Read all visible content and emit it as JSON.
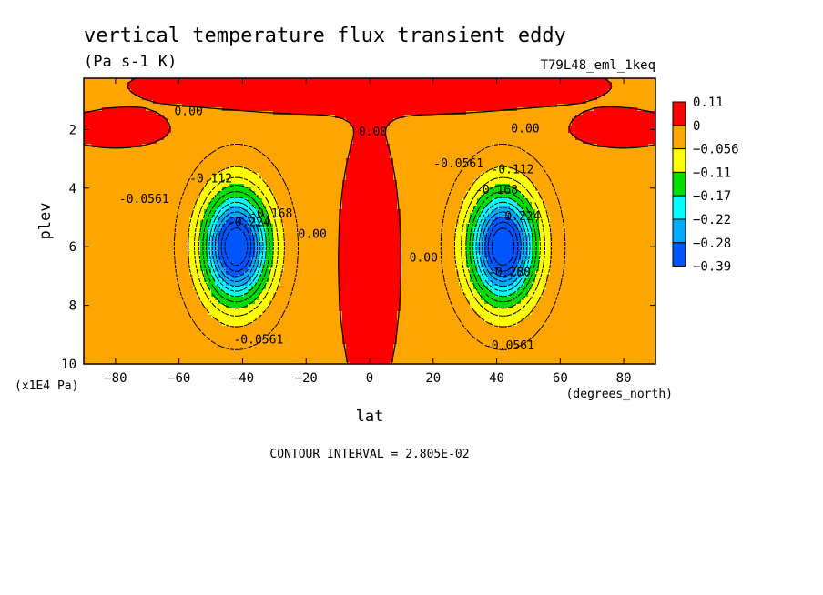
{
  "chart_data": {
    "type": "heatmap",
    "subtype": "filled-contour",
    "title": "vertical temperature flux transient eddy",
    "units": "(Pa s-1 K)",
    "dataset": "T79L48_eml_1keq",
    "xlabel": "lat",
    "xunits": "(degrees_north)",
    "ylabel": "plev",
    "yunits": "(x1E4 Pa)",
    "xlim": [
      -90,
      90
    ],
    "ylim": [
      10,
      0.25
    ],
    "xticks": [
      -80,
      -60,
      -40,
      -20,
      0,
      20,
      40,
      60,
      80
    ],
    "yticks": [
      2,
      4,
      6,
      8,
      10
    ],
    "contour_interval": "CONTOUR INTERVAL = 2.805E-02",
    "colorbar": {
      "labels": [
        "0.11",
        "0",
        "−0.056",
        "−0.11",
        "−0.17",
        "−0.22",
        "−0.28",
        "−0.39"
      ],
      "colors": [
        "#ff0000",
        "#ffa500",
        "#ffff00",
        "#00dd00",
        "#00ffff",
        "#00aaff",
        "#0055ff"
      ]
    },
    "contour_labels": [
      {
        "text": "0.00",
        "lat": -57,
        "plev": 1.5
      },
      {
        "text": "0.00",
        "lat": 1,
        "plev": 2.2
      },
      {
        "text": "0.00",
        "lat": 49,
        "plev": 2.1
      },
      {
        "text": "-0.0561",
        "lat": -71,
        "plev": 4.5
      },
      {
        "text": "-0.112",
        "lat": -50,
        "plev": 3.8
      },
      {
        "text": "-0.224",
        "lat": -38,
        "plev": 5.3
      },
      {
        "text": "-0.168",
        "lat": -31,
        "plev": 5.0
      },
      {
        "text": "0.00",
        "lat": -18,
        "plev": 5.7
      },
      {
        "text": "0.00",
        "lat": 17,
        "plev": 6.5
      },
      {
        "text": "-0.0561",
        "lat": 28,
        "plev": 3.3
      },
      {
        "text": "-0.112",
        "lat": 45,
        "plev": 3.5
      },
      {
        "text": "-0.168",
        "lat": 40,
        "plev": 4.2
      },
      {
        "text": "-0.224",
        "lat": 47,
        "plev": 5.1
      },
      {
        "text": "-0.280",
        "lat": 44,
        "plev": 7.0
      },
      {
        "text": "-0.0561",
        "lat": -35,
        "plev": 9.3
      },
      {
        "text": "-0.0561",
        "lat": 44,
        "plev": 9.5
      }
    ],
    "field": {
      "description_units": "Pa s-1 K",
      "components": [
        {
          "kind": "background",
          "value": -0.02
        },
        {
          "kind": "gaussian",
          "amp": -0.36,
          "lat": -42,
          "plev": 6.0,
          "slat": 10,
          "splev": 1.8
        },
        {
          "kind": "gaussian",
          "amp": -0.36,
          "lat": 42,
          "plev": 6.0,
          "slat": 10,
          "splev": 1.8
        },
        {
          "kind": "gaussian",
          "amp": 0.09,
          "lat": 0,
          "plev": 6.5,
          "slat": 8,
          "splev": 4.0
        },
        {
          "kind": "gaussian",
          "amp": 0.1,
          "lat": 0,
          "plev": 0.5,
          "slat": 60,
          "splev": 0.8
        },
        {
          "kind": "gaussian",
          "amp": 0.06,
          "lat": -80,
          "plev": 2.0,
          "slat": 16,
          "splev": 0.6
        },
        {
          "kind": "gaussian",
          "amp": 0.06,
          "lat": 80,
          "plev": 2.0,
          "slat": 16,
          "splev": 0.6
        }
      ]
    }
  }
}
